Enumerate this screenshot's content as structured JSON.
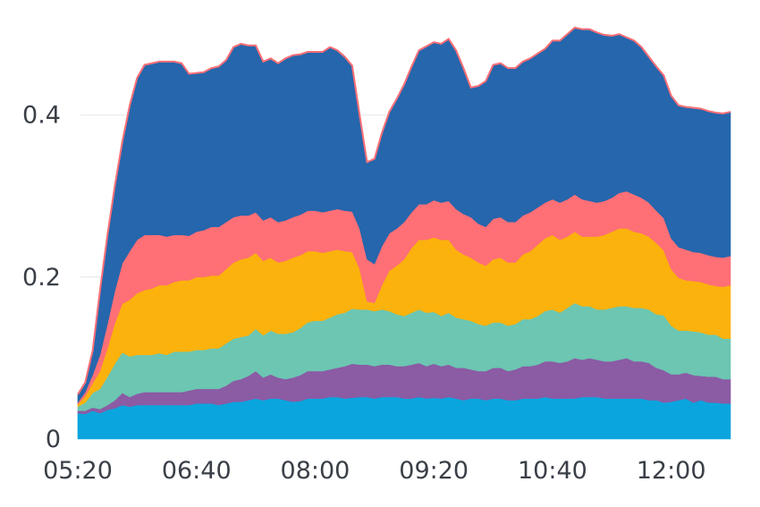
{
  "chart_data": {
    "type": "area",
    "stacked": true,
    "title": "",
    "xlabel": "",
    "ylabel": "",
    "ylim": [
      0,
      0.52
    ],
    "y_ticks": [
      {
        "value": 0,
        "label": "0"
      },
      {
        "value": 0.2,
        "label": "0.2"
      },
      {
        "value": 0.4,
        "label": "0.4"
      }
    ],
    "x_ticks": [
      {
        "value": 0,
        "label": "05:20"
      },
      {
        "value": 16,
        "label": "06:40"
      },
      {
        "value": 32,
        "label": "08:00"
      },
      {
        "value": 48,
        "label": "09:20"
      },
      {
        "value": 64,
        "label": "10:40"
      },
      {
        "value": 80,
        "label": "12:00"
      }
    ],
    "grid": {
      "horizontal": true,
      "vertical": false
    },
    "legend": "none",
    "x_interval_minutes": 5,
    "series": [
      {
        "color": "#0aa5de",
        "values": [
          0.032,
          0.031,
          0.035,
          0.032,
          0.036,
          0.038,
          0.042,
          0.04,
          0.042,
          0.042,
          0.042,
          0.042,
          0.042,
          0.042,
          0.042,
          0.042,
          0.044,
          0.044,
          0.044,
          0.042,
          0.044,
          0.046,
          0.046,
          0.048,
          0.05,
          0.048,
          0.05,
          0.05,
          0.048,
          0.046,
          0.047,
          0.05,
          0.05,
          0.05,
          0.052,
          0.052,
          0.05,
          0.051,
          0.052,
          0.052,
          0.05,
          0.052,
          0.052,
          0.052,
          0.05,
          0.05,
          0.052,
          0.05,
          0.051,
          0.05,
          0.052,
          0.05,
          0.048,
          0.05,
          0.05,
          0.048,
          0.05,
          0.05,
          0.048,
          0.048,
          0.05,
          0.05,
          0.05,
          0.052,
          0.05,
          0.05,
          0.05,
          0.05,
          0.052,
          0.052,
          0.052,
          0.05,
          0.05,
          0.05,
          0.05,
          0.05,
          0.05,
          0.048,
          0.048,
          0.045,
          0.046,
          0.048,
          0.05,
          0.045,
          0.048,
          0.045,
          0.045,
          0.044,
          0.044
        ]
      },
      {
        "color": "#8b5ba4",
        "values": [
          0.003,
          0.004,
          0.004,
          0.005,
          0.006,
          0.01,
          0.015,
          0.012,
          0.014,
          0.016,
          0.016,
          0.016,
          0.016,
          0.016,
          0.016,
          0.018,
          0.018,
          0.018,
          0.018,
          0.02,
          0.022,
          0.026,
          0.028,
          0.03,
          0.034,
          0.028,
          0.03,
          0.026,
          0.026,
          0.03,
          0.032,
          0.034,
          0.034,
          0.034,
          0.034,
          0.036,
          0.04,
          0.042,
          0.04,
          0.04,
          0.04,
          0.04,
          0.04,
          0.038,
          0.04,
          0.042,
          0.042,
          0.04,
          0.042,
          0.04,
          0.04,
          0.038,
          0.04,
          0.036,
          0.034,
          0.036,
          0.038,
          0.038,
          0.036,
          0.038,
          0.04,
          0.04,
          0.042,
          0.044,
          0.046,
          0.044,
          0.046,
          0.05,
          0.046,
          0.048,
          0.046,
          0.046,
          0.046,
          0.048,
          0.05,
          0.046,
          0.046,
          0.046,
          0.04,
          0.04,
          0.034,
          0.032,
          0.032,
          0.034,
          0.03,
          0.032,
          0.032,
          0.03,
          0.03
        ]
      },
      {
        "color": "#6cc6b1",
        "values": [
          0.005,
          0.01,
          0.018,
          0.025,
          0.035,
          0.045,
          0.05,
          0.05,
          0.048,
          0.046,
          0.046,
          0.048,
          0.046,
          0.05,
          0.05,
          0.048,
          0.048,
          0.048,
          0.05,
          0.05,
          0.052,
          0.052,
          0.052,
          0.05,
          0.052,
          0.052,
          0.054,
          0.054,
          0.056,
          0.056,
          0.058,
          0.06,
          0.062,
          0.062,
          0.064,
          0.066,
          0.066,
          0.068,
          0.068,
          0.068,
          0.068,
          0.068,
          0.066,
          0.064,
          0.062,
          0.064,
          0.066,
          0.066,
          0.064,
          0.062,
          0.064,
          0.062,
          0.06,
          0.06,
          0.058,
          0.056,
          0.056,
          0.056,
          0.056,
          0.056,
          0.058,
          0.058,
          0.06,
          0.062,
          0.064,
          0.062,
          0.066,
          0.068,
          0.066,
          0.064,
          0.062,
          0.064,
          0.066,
          0.066,
          0.064,
          0.066,
          0.066,
          0.066,
          0.066,
          0.068,
          0.06,
          0.054,
          0.052,
          0.054,
          0.054,
          0.052,
          0.052,
          0.05,
          0.05
        ]
      },
      {
        "color": "#fbb20c",
        "values": [
          0.003,
          0.008,
          0.012,
          0.022,
          0.035,
          0.05,
          0.06,
          0.07,
          0.076,
          0.08,
          0.082,
          0.084,
          0.086,
          0.086,
          0.088,
          0.088,
          0.09,
          0.09,
          0.09,
          0.09,
          0.092,
          0.094,
          0.096,
          0.096,
          0.094,
          0.092,
          0.09,
          0.088,
          0.09,
          0.092,
          0.09,
          0.088,
          0.086,
          0.084,
          0.082,
          0.08,
          0.076,
          0.07,
          0.05,
          0.01,
          0.01,
          0.03,
          0.05,
          0.06,
          0.07,
          0.08,
          0.086,
          0.09,
          0.092,
          0.094,
          0.09,
          0.084,
          0.08,
          0.078,
          0.076,
          0.074,
          0.078,
          0.08,
          0.078,
          0.076,
          0.08,
          0.084,
          0.088,
          0.09,
          0.092,
          0.09,
          0.088,
          0.088,
          0.086,
          0.086,
          0.09,
          0.092,
          0.094,
          0.096,
          0.096,
          0.094,
          0.092,
          0.09,
          0.088,
          0.08,
          0.07,
          0.065,
          0.062,
          0.062,
          0.062,
          0.062,
          0.06,
          0.064,
          0.066
        ]
      },
      {
        "color": "#fe6f76",
        "values": [
          0.002,
          0.005,
          0.01,
          0.02,
          0.03,
          0.04,
          0.05,
          0.06,
          0.066,
          0.068,
          0.066,
          0.062,
          0.06,
          0.058,
          0.056,
          0.055,
          0.056,
          0.058,
          0.06,
          0.06,
          0.058,
          0.056,
          0.054,
          0.052,
          0.05,
          0.05,
          0.05,
          0.05,
          0.05,
          0.05,
          0.05,
          0.05,
          0.05,
          0.05,
          0.05,
          0.05,
          0.05,
          0.05,
          0.05,
          0.052,
          0.048,
          0.048,
          0.046,
          0.046,
          0.046,
          0.044,
          0.044,
          0.044,
          0.046,
          0.046,
          0.048,
          0.05,
          0.05,
          0.05,
          0.048,
          0.048,
          0.05,
          0.05,
          0.05,
          0.05,
          0.048,
          0.048,
          0.046,
          0.044,
          0.044,
          0.046,
          0.046,
          0.046,
          0.046,
          0.044,
          0.042,
          0.042,
          0.042,
          0.044,
          0.046,
          0.046,
          0.044,
          0.042,
          0.04,
          0.04,
          0.038,
          0.038,
          0.038,
          0.036,
          0.036,
          0.036,
          0.036,
          0.036,
          0.036
        ]
      },
      {
        "color": "#2566ac",
        "values": [
          0.01,
          0.012,
          0.03,
          0.08,
          0.11,
          0.13,
          0.15,
          0.18,
          0.2,
          0.21,
          0.212,
          0.214,
          0.216,
          0.214,
          0.212,
          0.2,
          0.196,
          0.195,
          0.196,
          0.198,
          0.2,
          0.21,
          0.212,
          0.21,
          0.206,
          0.196,
          0.196,
          0.196,
          0.2,
          0.2,
          0.198,
          0.196,
          0.196,
          0.198,
          0.202,
          0.196,
          0.19,
          0.18,
          0.14,
          0.12,
          0.13,
          0.14,
          0.15,
          0.16,
          0.17,
          0.18,
          0.19,
          0.195,
          0.195,
          0.196,
          0.2,
          0.196,
          0.18,
          0.16,
          0.17,
          0.18,
          0.19,
          0.19,
          0.19,
          0.19,
          0.19,
          0.19,
          0.19,
          0.19,
          0.196,
          0.2,
          0.204,
          0.206,
          0.21,
          0.212,
          0.21,
          0.205,
          0.2,
          0.196,
          0.19,
          0.19,
          0.186,
          0.18,
          0.178,
          0.176,
          0.176,
          0.175,
          0.176,
          0.178,
          0.178,
          0.178,
          0.178,
          0.178,
          0.178
        ]
      }
    ]
  }
}
